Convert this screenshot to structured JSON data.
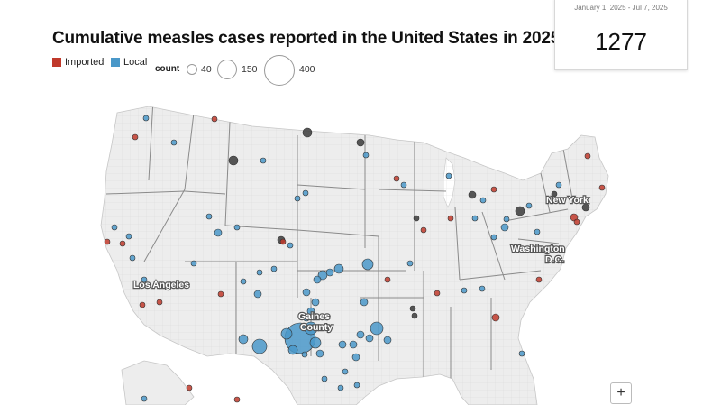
{
  "title": "Cumulative measles cases reported in the United States in 2025",
  "legend": {
    "imported_label": "Imported",
    "local_label": "Local",
    "imported_color": "#c0392b",
    "local_color": "#4a98c9",
    "count_label": "count",
    "sizes": [
      "40",
      "150",
      "400"
    ]
  },
  "stat": {
    "date_range": "January 1, 2025 - Jul 7, 2025",
    "total": "1277"
  },
  "map_labels": {
    "new_york": "New York",
    "washington": "Washington",
    "dc": "D.C.",
    "los_angeles": "Los Angeles",
    "gaines": "Gaines",
    "county": "County"
  },
  "zoom_in_label": "+"
}
